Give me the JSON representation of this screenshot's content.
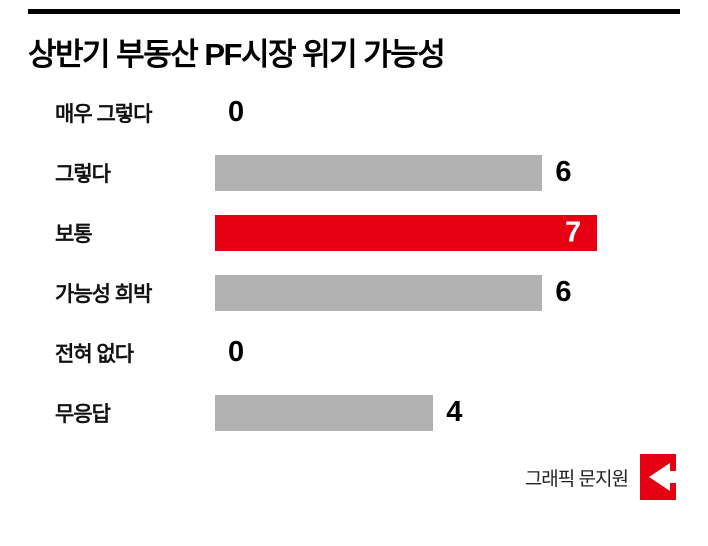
{
  "title": "상반기 부동산 PF시장 위기 가능성",
  "credit": "그래픽 문지원",
  "colors": {
    "bar_default": "#b1b1b1",
    "bar_highlight": "#e50012",
    "value_inside_bar": "#ffffff",
    "title": "#000000"
  },
  "chart_data": {
    "type": "bar",
    "orientation": "horizontal",
    "title": "상반기 부동산 PF시장 위기 가능성",
    "categories": [
      "매우 그렇다",
      "그렇다",
      "보통",
      "가능성 희박",
      "전혀 없다",
      "무응답"
    ],
    "values": [
      0,
      6,
      7,
      6,
      0,
      4
    ],
    "highlight_index": 2,
    "xlim": [
      0,
      7
    ],
    "value_labels_shown": true,
    "legend": "none",
    "grid": "off"
  }
}
